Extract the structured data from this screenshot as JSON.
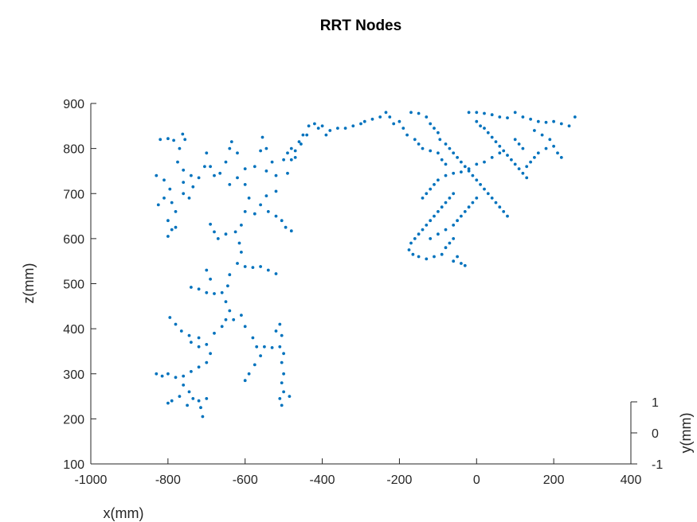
{
  "chart_data": {
    "type": "scatter",
    "title": "RRT Nodes",
    "xlabel": "x(mm)",
    "ylabel": "y(mm)",
    "zlabel": "z(mm)",
    "xlim": [
      -1000,
      400
    ],
    "ylim": [
      -1,
      1
    ],
    "zlim": [
      100,
      900
    ],
    "x_ticks": [
      -1000,
      -800,
      -600,
      -400,
      -200,
      0,
      200,
      400
    ],
    "y_ticks": [
      -1,
      0,
      1
    ],
    "z_ticks": [
      100,
      200,
      300,
      400,
      500,
      600,
      700,
      800,
      900
    ],
    "grid": false,
    "marker_color": "#0072BD",
    "series": [
      {
        "points": [
          [
            -820,
            820
          ],
          [
            -800,
            822
          ],
          [
            -785,
            818
          ],
          [
            -770,
            800
          ],
          [
            -762,
            832
          ],
          [
            -756,
            820
          ],
          [
            -775,
            770
          ],
          [
            -760,
            752
          ],
          [
            -740,
            740
          ],
          [
            -720,
            735
          ],
          [
            -705,
            760
          ],
          [
            -700,
            790
          ],
          [
            -690,
            760
          ],
          [
            -680,
            740
          ],
          [
            -830,
            740
          ],
          [
            -810,
            730
          ],
          [
            -795,
            710
          ],
          [
            -810,
            690
          ],
          [
            -825,
            675
          ],
          [
            -790,
            680
          ],
          [
            -780,
            660
          ],
          [
            -800,
            640
          ],
          [
            -790,
            620
          ],
          [
            -800,
            605
          ],
          [
            -780,
            625
          ],
          [
            -760,
            700
          ],
          [
            -745,
            690
          ],
          [
            -735,
            715
          ],
          [
            -760,
            725
          ],
          [
            -665,
            745
          ],
          [
            -650,
            770
          ],
          [
            -640,
            800
          ],
          [
            -635,
            815
          ],
          [
            -620,
            790
          ],
          [
            -600,
            755
          ],
          [
            -575,
            760
          ],
          [
            -560,
            795
          ],
          [
            -555,
            825
          ],
          [
            -545,
            800
          ],
          [
            -530,
            770
          ],
          [
            -545,
            750
          ],
          [
            -520,
            740
          ],
          [
            -490,
            745
          ],
          [
            -480,
            775
          ],
          [
            -640,
            720
          ],
          [
            -620,
            735
          ],
          [
            -600,
            720
          ],
          [
            -590,
            690
          ],
          [
            -575,
            655
          ],
          [
            -560,
            675
          ],
          [
            -545,
            695
          ],
          [
            -520,
            705
          ],
          [
            -540,
            660
          ],
          [
            -520,
            650
          ],
          [
            -505,
            640
          ],
          [
            -495,
            625
          ],
          [
            -480,
            617
          ],
          [
            -600,
            660
          ],
          [
            -610,
            630
          ],
          [
            -625,
            615
          ],
          [
            -650,
            610
          ],
          [
            -670,
            600
          ],
          [
            -690,
            632
          ],
          [
            -680,
            615
          ],
          [
            -615,
            590
          ],
          [
            -610,
            570
          ],
          [
            -620,
            545
          ],
          [
            -600,
            538
          ],
          [
            -580,
            536
          ],
          [
            -560,
            538
          ],
          [
            -540,
            530
          ],
          [
            -520,
            522
          ],
          [
            -640,
            520
          ],
          [
            -645,
            495
          ],
          [
            -660,
            480
          ],
          [
            -680,
            478
          ],
          [
            -700,
            480
          ],
          [
            -720,
            488
          ],
          [
            -740,
            492
          ],
          [
            -700,
            530
          ],
          [
            -690,
            510
          ],
          [
            -650,
            460
          ],
          [
            -640,
            440
          ],
          [
            -650,
            420
          ],
          [
            -660,
            405
          ],
          [
            -680,
            390
          ],
          [
            -720,
            380
          ],
          [
            -745,
            385
          ],
          [
            -765,
            395
          ],
          [
            -780,
            410
          ],
          [
            -795,
            425
          ],
          [
            -740,
            370
          ],
          [
            -720,
            360
          ],
          [
            -700,
            365
          ],
          [
            -690,
            345
          ],
          [
            -700,
            325
          ],
          [
            -720,
            315
          ],
          [
            -740,
            305
          ],
          [
            -760,
            295
          ],
          [
            -780,
            292
          ],
          [
            -800,
            300
          ],
          [
            -815,
            295
          ],
          [
            -830,
            300
          ],
          [
            -760,
            275
          ],
          [
            -745,
            260
          ],
          [
            -735,
            245
          ],
          [
            -750,
            230
          ],
          [
            -720,
            240
          ],
          [
            -700,
            245
          ],
          [
            -715,
            225
          ],
          [
            -710,
            205
          ],
          [
            -770,
            250
          ],
          [
            -790,
            240
          ],
          [
            -800,
            235
          ],
          [
            -630,
            420
          ],
          [
            -610,
            430
          ],
          [
            -600,
            405
          ],
          [
            -580,
            380
          ],
          [
            -570,
            360
          ],
          [
            -560,
            340
          ],
          [
            -575,
            320
          ],
          [
            -590,
            300
          ],
          [
            -600,
            285
          ],
          [
            -550,
            360
          ],
          [
            -530,
            358
          ],
          [
            -510,
            360
          ],
          [
            -505,
            385
          ],
          [
            -510,
            410
          ],
          [
            -520,
            395
          ],
          [
            -500,
            345
          ],
          [
            -505,
            325
          ],
          [
            -500,
            300
          ],
          [
            -505,
            280
          ],
          [
            -500,
            260
          ],
          [
            -510,
            245
          ],
          [
            -505,
            230
          ],
          [
            -485,
            250
          ],
          [
            -470,
            795
          ],
          [
            -460,
            815
          ],
          [
            -450,
            830
          ],
          [
            -435,
            850
          ],
          [
            -420,
            855
          ],
          [
            -400,
            850
          ],
          [
            -390,
            830
          ],
          [
            -380,
            840
          ],
          [
            -360,
            845
          ],
          [
            -340,
            845
          ],
          [
            -320,
            850
          ],
          [
            -300,
            855
          ],
          [
            -290,
            860
          ],
          [
            -270,
            865
          ],
          [
            -250,
            870
          ],
          [
            -235,
            880
          ],
          [
            -225,
            870
          ],
          [
            -215,
            855
          ],
          [
            -480,
            800
          ],
          [
            -490,
            790
          ],
          [
            -500,
            775
          ],
          [
            -470,
            780
          ],
          [
            -455,
            810
          ],
          [
            -440,
            830
          ],
          [
            -410,
            845
          ],
          [
            -200,
            860
          ],
          [
            -190,
            845
          ],
          [
            -180,
            830
          ],
          [
            -160,
            820
          ],
          [
            -150,
            810
          ],
          [
            -140,
            800
          ],
          [
            -120,
            795
          ],
          [
            -100,
            790
          ],
          [
            -90,
            775
          ],
          [
            -80,
            765
          ],
          [
            -170,
            880
          ],
          [
            -150,
            878
          ],
          [
            -130,
            870
          ],
          [
            -120,
            855
          ],
          [
            -110,
            845
          ],
          [
            -100,
            835
          ],
          [
            -95,
            820
          ],
          [
            -80,
            810
          ],
          [
            -70,
            800
          ],
          [
            -60,
            790
          ],
          [
            -50,
            780
          ],
          [
            -40,
            770
          ],
          [
            -30,
            760
          ],
          [
            -20,
            750
          ],
          [
            -10,
            740
          ],
          [
            0,
            730
          ],
          [
            10,
            720
          ],
          [
            20,
            710
          ],
          [
            30,
            700
          ],
          [
            40,
            690
          ],
          [
            50,
            680
          ],
          [
            60,
            670
          ],
          [
            70,
            660
          ],
          [
            80,
            650
          ],
          [
            0,
            860
          ],
          [
            10,
            850
          ],
          [
            20,
            845
          ],
          [
            30,
            835
          ],
          [
            40,
            825
          ],
          [
            50,
            815
          ],
          [
            60,
            805
          ],
          [
            70,
            795
          ],
          [
            80,
            785
          ],
          [
            90,
            775
          ],
          [
            100,
            765
          ],
          [
            110,
            755
          ],
          [
            120,
            745
          ],
          [
            130,
            735
          ],
          [
            -20,
            880
          ],
          [
            0,
            880
          ],
          [
            20,
            878
          ],
          [
            40,
            875
          ],
          [
            60,
            870
          ],
          [
            80,
            868
          ],
          [
            100,
            880
          ],
          [
            120,
            870
          ],
          [
            140,
            865
          ],
          [
            160,
            860
          ],
          [
            180,
            858
          ],
          [
            200,
            860
          ],
          [
            220,
            855
          ],
          [
            240,
            850
          ],
          [
            255,
            870
          ],
          [
            150,
            840
          ],
          [
            170,
            830
          ],
          [
            190,
            820
          ],
          [
            200,
            805
          ],
          [
            210,
            790
          ],
          [
            220,
            780
          ],
          [
            180,
            800
          ],
          [
            160,
            790
          ],
          [
            150,
            780
          ],
          [
            140,
            770
          ],
          [
            130,
            760
          ],
          [
            120,
            800
          ],
          [
            110,
            810
          ],
          [
            100,
            820
          ],
          [
            -60,
            700
          ],
          [
            -70,
            690
          ],
          [
            -80,
            680
          ],
          [
            -90,
            670
          ],
          [
            -100,
            660
          ],
          [
            -110,
            650
          ],
          [
            -120,
            640
          ],
          [
            -130,
            630
          ],
          [
            -140,
            620
          ],
          [
            -150,
            610
          ],
          [
            -160,
            600
          ],
          [
            -170,
            590
          ],
          [
            -175,
            575
          ],
          [
            -165,
            565
          ],
          [
            -150,
            560
          ],
          [
            -130,
            555
          ],
          [
            -110,
            560
          ],
          [
            -90,
            565
          ],
          [
            -120,
            600
          ],
          [
            -100,
            610
          ],
          [
            -80,
            620
          ],
          [
            -60,
            630
          ],
          [
            -50,
            640
          ],
          [
            -40,
            650
          ],
          [
            -30,
            660
          ],
          [
            -20,
            670
          ],
          [
            -10,
            680
          ],
          [
            0,
            690
          ],
          [
            -140,
            690
          ],
          [
            -130,
            700
          ],
          [
            -120,
            710
          ],
          [
            -110,
            720
          ],
          [
            -100,
            730
          ],
          [
            -80,
            740
          ],
          [
            -60,
            745
          ],
          [
            -40,
            748
          ],
          [
            -20,
            755
          ],
          [
            0,
            765
          ],
          [
            20,
            770
          ],
          [
            40,
            780
          ],
          [
            60,
            790
          ],
          [
            -80,
            580
          ],
          [
            -70,
            590
          ],
          [
            -60,
            600
          ],
          [
            -50,
            560
          ],
          [
            -60,
            550
          ],
          [
            -40,
            545
          ],
          [
            -30,
            540
          ]
        ]
      }
    ]
  }
}
